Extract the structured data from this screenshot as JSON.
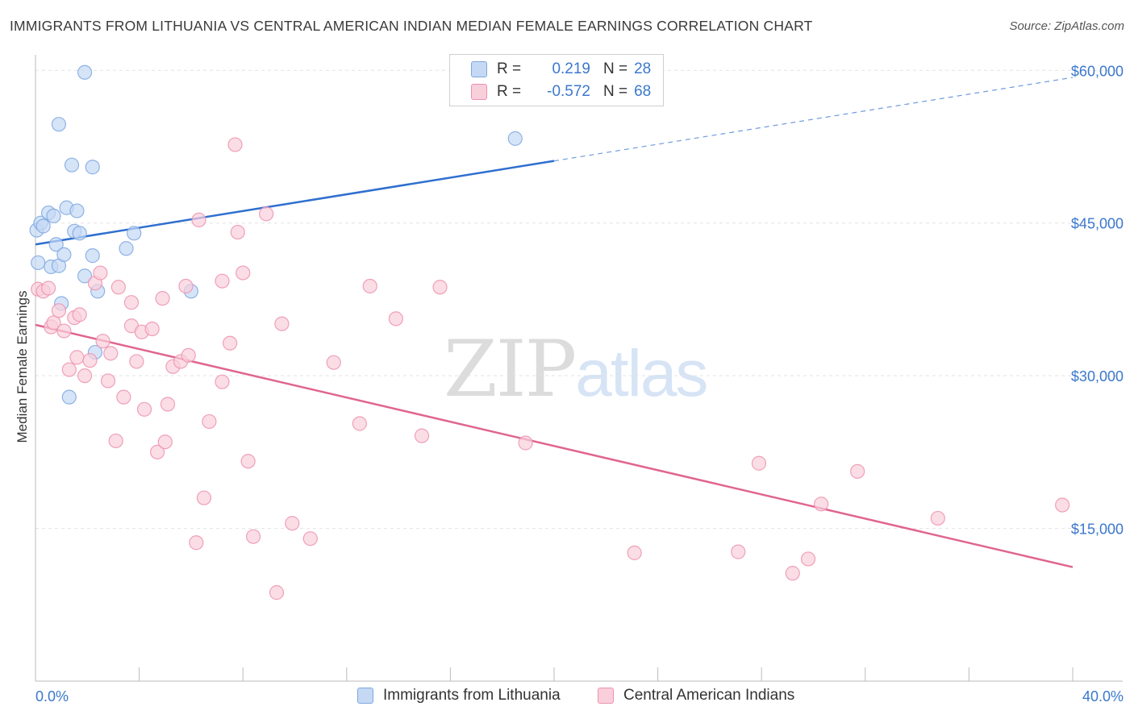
{
  "header": {
    "title": "IMMIGRANTS FROM LITHUANIA VS CENTRAL AMERICAN INDIAN MEDIAN FEMALE EARNINGS CORRELATION CHART",
    "source": "Source: ZipAtlas.com"
  },
  "watermark": {
    "zip": "ZIP",
    "atlas": "atlas"
  },
  "legend": {
    "rows": [
      {
        "r_label": "R =",
        "r_value": "0.219",
        "n_label": "N =",
        "n_value": "28"
      },
      {
        "r_label": "R =",
        "r_value": "-0.572",
        "n_label": "N =",
        "n_value": "68"
      }
    ],
    "bottom": [
      "Immigrants from Lithuania",
      "Central American Indians"
    ]
  },
  "colors": {
    "blue": "#7da7e0",
    "blue_fill": "#c5d9f5",
    "blue_line": "#2f6fcf",
    "pink": "#ec92af",
    "pink_fill": "#f9cfdc",
    "pink_line": "#e0658f",
    "axis_text": "#3b78cc",
    "grid": "#e3e3e3"
  },
  "chart_data": {
    "type": "scatter",
    "title": "IMMIGRANTS FROM LITHUANIA VS CENTRAL AMERICAN INDIAN MEDIAN FEMALE EARNINGS CORRELATION CHART",
    "xlabel": "",
    "ylabel": "Median Female Earnings",
    "xlim": [
      0,
      40
    ],
    "ylim": [
      0,
      62000
    ],
    "x_tick_labels": [
      "0.0%",
      "40.0%"
    ],
    "y_ticks": [
      15000,
      30000,
      45000,
      60000
    ],
    "y_tick_labels": [
      "$15,000",
      "$30,000",
      "$45,000",
      "$60,000"
    ],
    "grid": true,
    "series": [
      {
        "name": "Immigrants from Lithuania",
        "color": "#7da7e0",
        "points": [
          [
            0.05,
            44300
          ],
          [
            0.1,
            41100
          ],
          [
            0.2,
            45000
          ],
          [
            0.3,
            44700
          ],
          [
            0.5,
            46000
          ],
          [
            0.6,
            40700
          ],
          [
            0.7,
            45700
          ],
          [
            0.8,
            42900
          ],
          [
            0.9,
            40800
          ],
          [
            0.9,
            54700
          ],
          [
            1.0,
            37100
          ],
          [
            1.1,
            41900
          ],
          [
            1.2,
            46500
          ],
          [
            1.3,
            27900
          ],
          [
            1.4,
            50700
          ],
          [
            1.5,
            44200
          ],
          [
            1.6,
            46200
          ],
          [
            1.7,
            44000
          ],
          [
            1.9,
            39800
          ],
          [
            1.9,
            59800
          ],
          [
            2.2,
            41800
          ],
          [
            2.2,
            50500
          ],
          [
            2.3,
            32300
          ],
          [
            2.4,
            38300
          ],
          [
            3.5,
            42500
          ],
          [
            3.8,
            44000
          ],
          [
            6.0,
            38300
          ],
          [
            18.5,
            53300
          ]
        ],
        "trend": {
          "x": [
            0,
            20
          ],
          "y": [
            42900,
            51100
          ],
          "dashed_extension": {
            "x": [
              20,
              40
            ],
            "y": [
              51100,
              59300
            ]
          }
        }
      },
      {
        "name": "Central American Indians",
        "color": "#ec92af",
        "points": [
          [
            0.1,
            38500
          ],
          [
            0.3,
            38300
          ],
          [
            0.5,
            38600
          ],
          [
            0.6,
            34800
          ],
          [
            0.7,
            35200
          ],
          [
            0.9,
            36400
          ],
          [
            1.1,
            34400
          ],
          [
            1.3,
            30600
          ],
          [
            1.5,
            35700
          ],
          [
            1.6,
            31800
          ],
          [
            1.7,
            36000
          ],
          [
            1.9,
            30000
          ],
          [
            2.1,
            31500
          ],
          [
            2.3,
            39100
          ],
          [
            2.5,
            40100
          ],
          [
            2.6,
            33400
          ],
          [
            2.8,
            29500
          ],
          [
            2.9,
            32200
          ],
          [
            3.1,
            23600
          ],
          [
            3.2,
            38700
          ],
          [
            3.4,
            27900
          ],
          [
            3.7,
            34900
          ],
          [
            3.7,
            37200
          ],
          [
            3.9,
            31400
          ],
          [
            4.1,
            34300
          ],
          [
            4.2,
            26700
          ],
          [
            4.5,
            34600
          ],
          [
            4.7,
            22500
          ],
          [
            4.9,
            37600
          ],
          [
            5.0,
            23500
          ],
          [
            5.1,
            27200
          ],
          [
            5.3,
            30900
          ],
          [
            5.6,
            31400
          ],
          [
            5.8,
            38800
          ],
          [
            5.9,
            32000
          ],
          [
            6.3,
            45300
          ],
          [
            6.5,
            18000
          ],
          [
            6.7,
            25500
          ],
          [
            6.2,
            13600
          ],
          [
            7.2,
            29400
          ],
          [
            7.2,
            39300
          ],
          [
            7.5,
            33200
          ],
          [
            7.7,
            52700
          ],
          [
            7.8,
            44100
          ],
          [
            8.0,
            40100
          ],
          [
            8.2,
            21600
          ],
          [
            8.4,
            14200
          ],
          [
            8.9,
            45900
          ],
          [
            9.3,
            8700
          ],
          [
            9.5,
            35100
          ],
          [
            9.9,
            15500
          ],
          [
            10.6,
            14000
          ],
          [
            11.5,
            31300
          ],
          [
            12.5,
            25300
          ],
          [
            12.9,
            38800
          ],
          [
            13.9,
            35600
          ],
          [
            14.9,
            24100
          ],
          [
            15.6,
            38700
          ],
          [
            18.9,
            23400
          ],
          [
            23.1,
            12600
          ],
          [
            27.1,
            12700
          ],
          [
            27.9,
            21400
          ],
          [
            29.2,
            10600
          ],
          [
            29.8,
            12000
          ],
          [
            30.3,
            17400
          ],
          [
            31.7,
            20600
          ],
          [
            34.8,
            16000
          ],
          [
            39.6,
            17300
          ]
        ],
        "trend": {
          "x": [
            0,
            40
          ],
          "y": [
            35000,
            11200
          ]
        }
      }
    ]
  }
}
